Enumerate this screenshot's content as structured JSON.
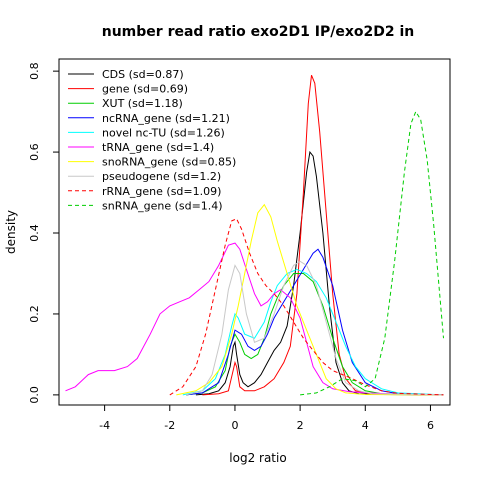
{
  "chart_data": {
    "type": "line",
    "title": "number read ratio exo2D1 IP/exo2D2 in",
    "xlabel": "log2 ratio",
    "ylabel": "density",
    "xlim": [
      -5.4,
      6.6
    ],
    "ylim": [
      -0.025,
      0.83
    ],
    "x_ticks": [
      -4,
      -2,
      0,
      2,
      4,
      6
    ],
    "y_ticks": [
      0.0,
      0.2,
      0.4,
      0.6,
      0.8
    ],
    "grid": false,
    "legend_position": "top-left",
    "series": [
      {
        "name": "CDS (sd=0.87)",
        "color": "#000000",
        "dash": "solid",
        "points": [
          [
            -1.2,
            0.0
          ],
          [
            -0.8,
            0.003
          ],
          [
            -0.5,
            0.01
          ],
          [
            -0.3,
            0.03
          ],
          [
            -0.15,
            0.07
          ],
          [
            -0.05,
            0.12
          ],
          [
            0.0,
            0.13
          ],
          [
            0.05,
            0.1
          ],
          [
            0.15,
            0.05
          ],
          [
            0.25,
            0.03
          ],
          [
            0.4,
            0.02
          ],
          [
            0.6,
            0.03
          ],
          [
            0.8,
            0.05
          ],
          [
            1.0,
            0.08
          ],
          [
            1.2,
            0.11
          ],
          [
            1.4,
            0.13
          ],
          [
            1.6,
            0.17
          ],
          [
            1.8,
            0.27
          ],
          [
            2.0,
            0.4
          ],
          [
            2.2,
            0.55
          ],
          [
            2.3,
            0.6
          ],
          [
            2.4,
            0.59
          ],
          [
            2.5,
            0.54
          ],
          [
            2.7,
            0.4
          ],
          [
            2.9,
            0.22
          ],
          [
            3.1,
            0.08
          ],
          [
            3.3,
            0.03
          ],
          [
            3.5,
            0.01
          ],
          [
            3.8,
            0.003
          ],
          [
            4.5,
            0.001
          ],
          [
            6.4,
            0.0
          ]
        ]
      },
      {
        "name": "gene (sd=0.69)",
        "color": "#ff0000",
        "dash": "solid",
        "points": [
          [
            -1.0,
            0.0
          ],
          [
            -0.5,
            0.003
          ],
          [
            -0.2,
            0.01
          ],
          [
            0.0,
            0.08
          ],
          [
            0.05,
            0.07
          ],
          [
            0.15,
            0.02
          ],
          [
            0.3,
            0.01
          ],
          [
            0.6,
            0.01
          ],
          [
            0.9,
            0.02
          ],
          [
            1.2,
            0.04
          ],
          [
            1.5,
            0.08
          ],
          [
            1.7,
            0.12
          ],
          [
            1.9,
            0.25
          ],
          [
            2.1,
            0.5
          ],
          [
            2.25,
            0.72
          ],
          [
            2.35,
            0.79
          ],
          [
            2.45,
            0.77
          ],
          [
            2.6,
            0.65
          ],
          [
            2.8,
            0.45
          ],
          [
            3.0,
            0.25
          ],
          [
            3.2,
            0.1
          ],
          [
            3.4,
            0.04
          ],
          [
            3.7,
            0.01
          ],
          [
            4.2,
            0.002
          ],
          [
            6.4,
            0.0
          ]
        ]
      },
      {
        "name": "XUT (sd=1.18)",
        "color": "#00cd00",
        "dash": "solid",
        "points": [
          [
            -1.5,
            0.0
          ],
          [
            -1.0,
            0.005
          ],
          [
            -0.6,
            0.02
          ],
          [
            -0.3,
            0.06
          ],
          [
            -0.15,
            0.12
          ],
          [
            0.0,
            0.15
          ],
          [
            0.15,
            0.13
          ],
          [
            0.3,
            0.1
          ],
          [
            0.5,
            0.09
          ],
          [
            0.7,
            0.1
          ],
          [
            0.9,
            0.14
          ],
          [
            1.1,
            0.2
          ],
          [
            1.3,
            0.24
          ],
          [
            1.5,
            0.27
          ],
          [
            1.8,
            0.3
          ],
          [
            2.1,
            0.3
          ],
          [
            2.4,
            0.28
          ],
          [
            2.7,
            0.22
          ],
          [
            3.0,
            0.14
          ],
          [
            3.3,
            0.07
          ],
          [
            3.6,
            0.03
          ],
          [
            4.0,
            0.01
          ],
          [
            4.5,
            0.003
          ],
          [
            6.4,
            0.0
          ]
        ]
      },
      {
        "name": "ncRNA_gene (sd=1.21)",
        "color": "#0000ff",
        "dash": "solid",
        "points": [
          [
            -1.5,
            0.0
          ],
          [
            -1.0,
            0.005
          ],
          [
            -0.5,
            0.03
          ],
          [
            -0.2,
            0.1
          ],
          [
            0.0,
            0.16
          ],
          [
            0.2,
            0.15
          ],
          [
            0.4,
            0.12
          ],
          [
            0.6,
            0.11
          ],
          [
            0.8,
            0.12
          ],
          [
            1.0,
            0.15
          ],
          [
            1.2,
            0.19
          ],
          [
            1.5,
            0.23
          ],
          [
            1.8,
            0.27
          ],
          [
            2.1,
            0.31
          ],
          [
            2.4,
            0.35
          ],
          [
            2.55,
            0.36
          ],
          [
            2.7,
            0.34
          ],
          [
            3.0,
            0.27
          ],
          [
            3.3,
            0.16
          ],
          [
            3.6,
            0.08
          ],
          [
            4.0,
            0.03
          ],
          [
            4.5,
            0.01
          ],
          [
            5.0,
            0.003
          ],
          [
            6.4,
            0.0
          ]
        ]
      },
      {
        "name": "novel nc-TU (sd=1.26)",
        "color": "#00ffff",
        "dash": "solid",
        "points": [
          [
            -1.6,
            0.0
          ],
          [
            -1.0,
            0.01
          ],
          [
            -0.6,
            0.04
          ],
          [
            -0.3,
            0.1
          ],
          [
            -0.1,
            0.17
          ],
          [
            0.0,
            0.2
          ],
          [
            0.1,
            0.19
          ],
          [
            0.3,
            0.15
          ],
          [
            0.6,
            0.14
          ],
          [
            0.9,
            0.18
          ],
          [
            1.1,
            0.23
          ],
          [
            1.3,
            0.27
          ],
          [
            1.6,
            0.3
          ],
          [
            1.9,
            0.31
          ],
          [
            2.2,
            0.3
          ],
          [
            2.5,
            0.28
          ],
          [
            2.8,
            0.24
          ],
          [
            3.1,
            0.18
          ],
          [
            3.4,
            0.12
          ],
          [
            3.7,
            0.07
          ],
          [
            4.0,
            0.04
          ],
          [
            4.5,
            0.015
          ],
          [
            5.0,
            0.005
          ],
          [
            6.4,
            0.0
          ]
        ]
      },
      {
        "name": "tRNA_gene (sd=1.4)",
        "color": "#ff00ff",
        "dash": "solid",
        "points": [
          [
            -5.2,
            0.01
          ],
          [
            -4.9,
            0.02
          ],
          [
            -4.5,
            0.05
          ],
          [
            -4.2,
            0.06
          ],
          [
            -3.7,
            0.06
          ],
          [
            -3.3,
            0.07
          ],
          [
            -3.0,
            0.09
          ],
          [
            -2.6,
            0.15
          ],
          [
            -2.3,
            0.2
          ],
          [
            -2.0,
            0.22
          ],
          [
            -1.7,
            0.23
          ],
          [
            -1.4,
            0.24
          ],
          [
            -1.1,
            0.26
          ],
          [
            -0.8,
            0.28
          ],
          [
            -0.5,
            0.32
          ],
          [
            -0.2,
            0.37
          ],
          [
            0.0,
            0.375
          ],
          [
            0.15,
            0.36
          ],
          [
            0.35,
            0.31
          ],
          [
            0.6,
            0.25
          ],
          [
            0.8,
            0.22
          ],
          [
            1.0,
            0.23
          ],
          [
            1.2,
            0.25
          ],
          [
            1.4,
            0.26
          ],
          [
            1.7,
            0.24
          ],
          [
            2.0,
            0.19
          ],
          [
            2.2,
            0.13
          ],
          [
            2.4,
            0.07
          ],
          [
            2.7,
            0.03
          ],
          [
            3.0,
            0.015
          ],
          [
            3.5,
            0.008
          ],
          [
            4.0,
            0.005
          ],
          [
            5.0,
            0.002
          ],
          [
            6.4,
            0.0
          ]
        ]
      },
      {
        "name": "snoRNA_gene (sd=0.85)",
        "color": "#ffff00",
        "dash": "solid",
        "points": [
          [
            -1.8,
            0.0
          ],
          [
            -1.2,
            0.01
          ],
          [
            -0.8,
            0.03
          ],
          [
            -0.4,
            0.07
          ],
          [
            -0.1,
            0.15
          ],
          [
            0.1,
            0.22
          ],
          [
            0.3,
            0.3
          ],
          [
            0.5,
            0.38
          ],
          [
            0.7,
            0.45
          ],
          [
            0.9,
            0.47
          ],
          [
            1.1,
            0.44
          ],
          [
            1.3,
            0.38
          ],
          [
            1.6,
            0.3
          ],
          [
            1.9,
            0.22
          ],
          [
            2.2,
            0.16
          ],
          [
            2.5,
            0.1
          ],
          [
            2.8,
            0.04
          ],
          [
            3.1,
            0.015
          ],
          [
            3.4,
            0.005
          ],
          [
            4.0,
            0.001
          ],
          [
            6.4,
            0.0
          ]
        ]
      },
      {
        "name": "pseudogene (sd=1.2)",
        "color": "#c8c8c8",
        "dash": "solid",
        "points": [
          [
            -1.5,
            0.0
          ],
          [
            -1.0,
            0.01
          ],
          [
            -0.7,
            0.05
          ],
          [
            -0.4,
            0.15
          ],
          [
            -0.2,
            0.26
          ],
          [
            0.0,
            0.32
          ],
          [
            0.15,
            0.3
          ],
          [
            0.35,
            0.2
          ],
          [
            0.6,
            0.13
          ],
          [
            0.9,
            0.14
          ],
          [
            1.2,
            0.2
          ],
          [
            1.5,
            0.27
          ],
          [
            1.8,
            0.32
          ],
          [
            2.0,
            0.33
          ],
          [
            2.2,
            0.32
          ],
          [
            2.5,
            0.27
          ],
          [
            2.8,
            0.18
          ],
          [
            3.1,
            0.09
          ],
          [
            3.4,
            0.03
          ],
          [
            3.8,
            0.01
          ],
          [
            4.2,
            0.003
          ],
          [
            6.4,
            0.0
          ]
        ]
      },
      {
        "name": "rRNA_gene (sd=1.09)",
        "color": "#ff0000",
        "dash": "dashed",
        "points": [
          [
            -2.0,
            0.0
          ],
          [
            -1.6,
            0.02
          ],
          [
            -1.2,
            0.07
          ],
          [
            -0.9,
            0.15
          ],
          [
            -0.6,
            0.26
          ],
          [
            -0.3,
            0.37
          ],
          [
            -0.1,
            0.43
          ],
          [
            0.05,
            0.435
          ],
          [
            0.2,
            0.41
          ],
          [
            0.45,
            0.35
          ],
          [
            0.7,
            0.3
          ],
          [
            0.95,
            0.27
          ],
          [
            1.2,
            0.25
          ],
          [
            1.5,
            0.22
          ],
          [
            1.8,
            0.18
          ],
          [
            2.1,
            0.14
          ],
          [
            2.4,
            0.11
          ],
          [
            2.7,
            0.08
          ],
          [
            3.0,
            0.06
          ],
          [
            3.3,
            0.05
          ],
          [
            3.6,
            0.04
          ],
          [
            4.0,
            0.025
          ],
          [
            4.5,
            0.01
          ],
          [
            5.0,
            0.004
          ],
          [
            6.4,
            0.0
          ]
        ]
      },
      {
        "name": "snRNA_gene (sd=1.4)",
        "color": "#00cd00",
        "dash": "dashed",
        "points": [
          [
            2.0,
            0.0
          ],
          [
            2.5,
            0.005
          ],
          [
            2.9,
            0.02
          ],
          [
            3.3,
            0.04
          ],
          [
            3.7,
            0.035
          ],
          [
            4.0,
            0.02
          ],
          [
            4.3,
            0.04
          ],
          [
            4.6,
            0.14
          ],
          [
            4.9,
            0.33
          ],
          [
            5.2,
            0.55
          ],
          [
            5.4,
            0.67
          ],
          [
            5.55,
            0.7
          ],
          [
            5.7,
            0.68
          ],
          [
            5.9,
            0.58
          ],
          [
            6.1,
            0.42
          ],
          [
            6.25,
            0.28
          ],
          [
            6.4,
            0.14
          ]
        ]
      }
    ]
  }
}
